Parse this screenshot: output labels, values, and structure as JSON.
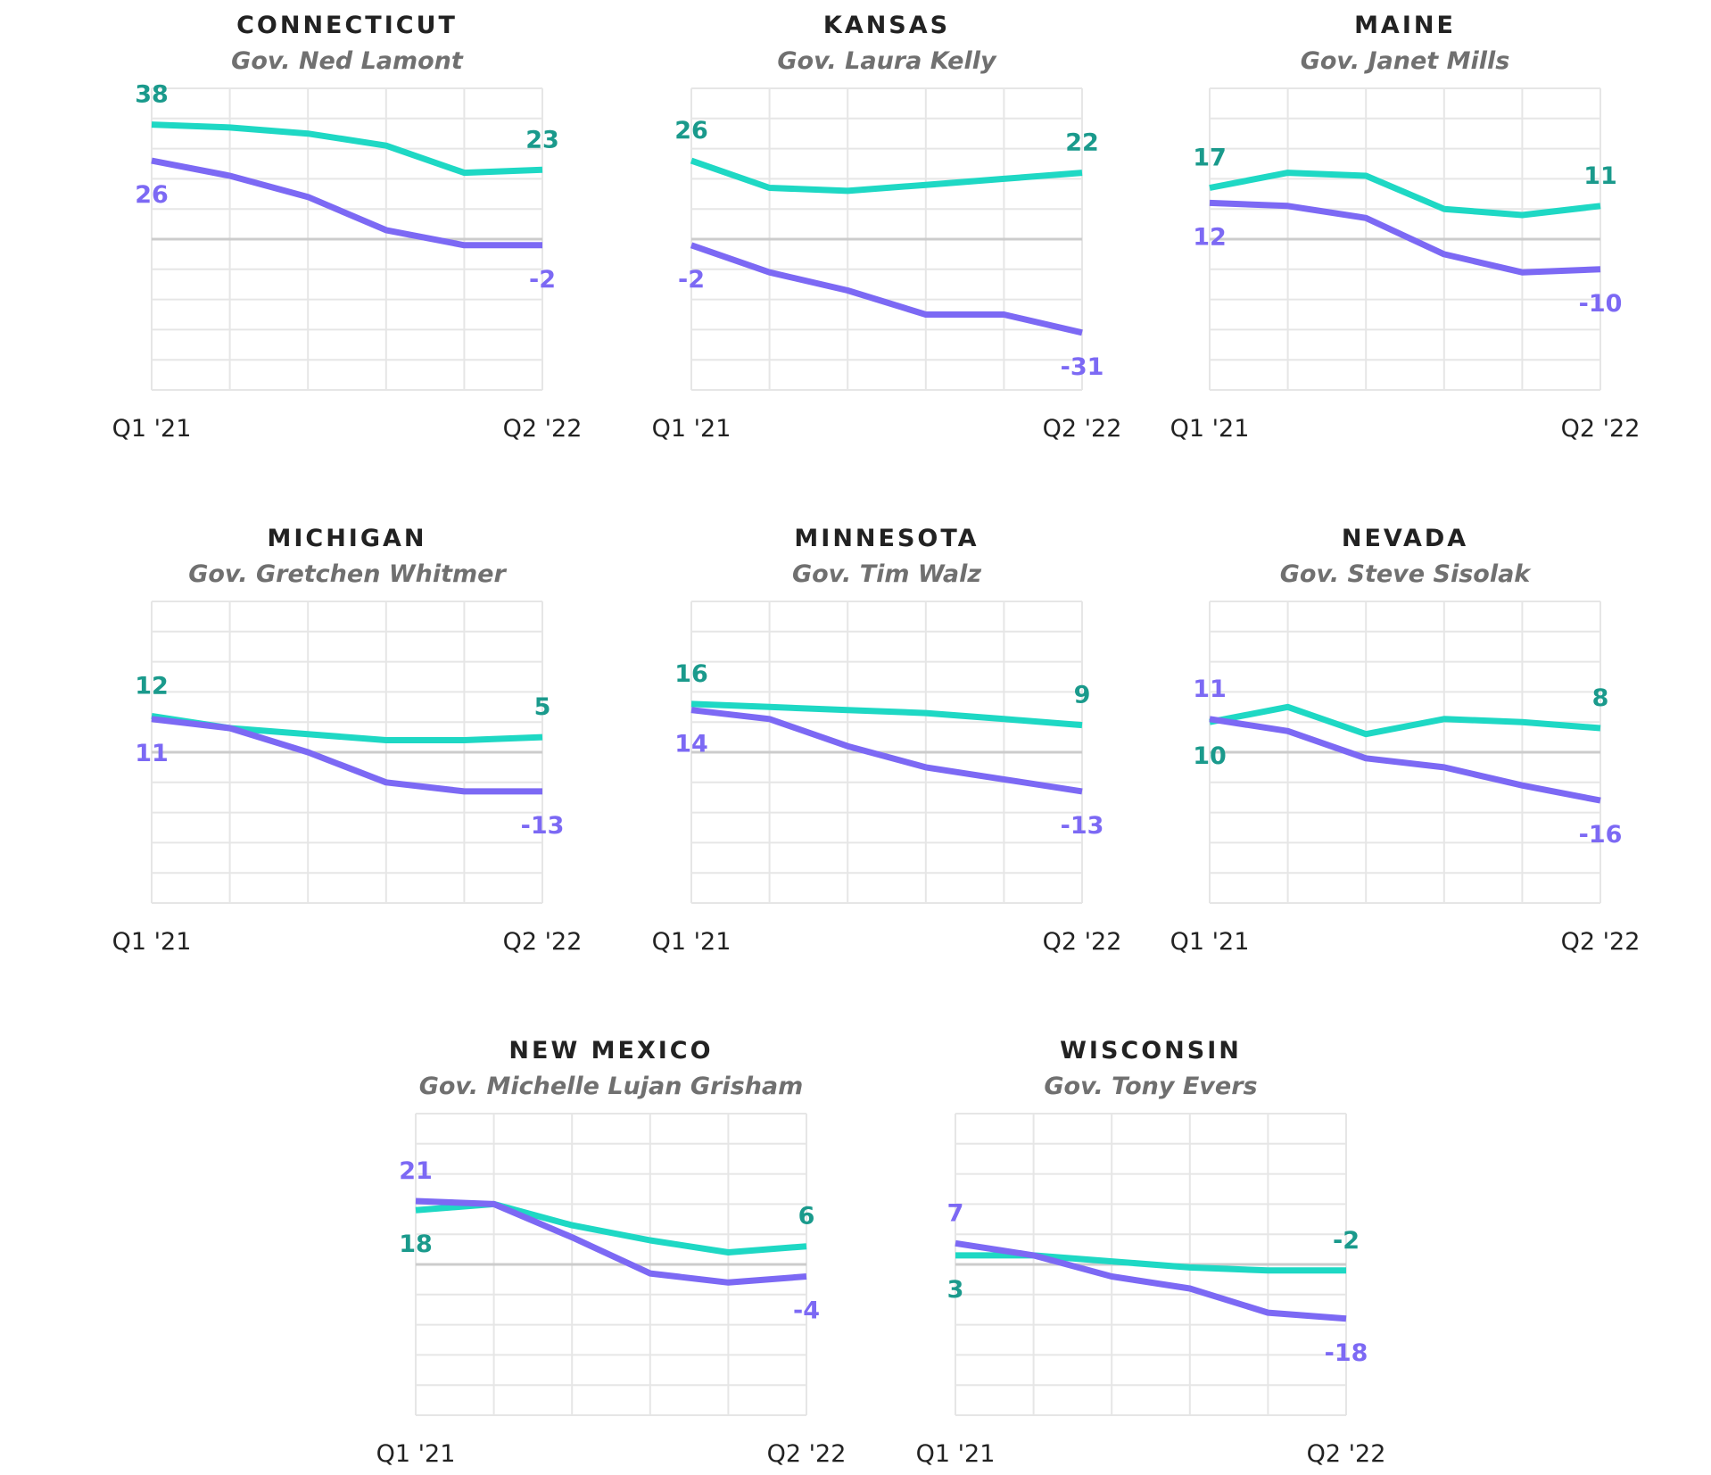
{
  "colors": {
    "series_a": "#1ed8c4",
    "series_a_label": "#1a9a8c",
    "series_b": "#7c69f4",
    "grid": "#e6e6e6",
    "zero": "#cccccc"
  },
  "chart_data": [
    {
      "type": "line",
      "title": "CONNECTICUT",
      "subtitle": "Gov. Ned Lamont",
      "x_tick_labels": [
        "Q1 '21",
        "Q2 '22"
      ],
      "x": [
        1,
        2,
        3,
        4,
        5,
        6
      ],
      "ylim": [
        -50,
        50
      ],
      "grid": true,
      "series": [
        {
          "values": [
            38,
            37,
            35,
            31,
            22,
            23
          ],
          "labels": [
            "38",
            "23"
          ]
        },
        {
          "values": [
            26,
            21,
            14,
            3,
            -2,
            -2
          ],
          "labels": [
            "26",
            "-2"
          ]
        }
      ]
    },
    {
      "type": "line",
      "title": "KANSAS",
      "subtitle": "Gov. Laura Kelly",
      "x_tick_labels": [
        "Q1 '21",
        "Q2 '22"
      ],
      "x": [
        1,
        2,
        3,
        4,
        5,
        6
      ],
      "ylim": [
        -50,
        50
      ],
      "grid": true,
      "series": [
        {
          "values": [
            26,
            17,
            16,
            18,
            20,
            22
          ],
          "labels": [
            "26",
            "22"
          ]
        },
        {
          "values": [
            -2,
            -11,
            -17,
            -25,
            -25,
            -31
          ],
          "labels": [
            "-2",
            "-31"
          ]
        }
      ]
    },
    {
      "type": "line",
      "title": "MAINE",
      "subtitle": "Gov. Janet Mills",
      "x_tick_labels": [
        "Q1 '21",
        "Q2 '22"
      ],
      "x": [
        1,
        2,
        3,
        4,
        5,
        6
      ],
      "ylim": [
        -50,
        50
      ],
      "grid": true,
      "series": [
        {
          "values": [
            17,
            22,
            21,
            10,
            8,
            11
          ],
          "labels": [
            "17",
            "11"
          ]
        },
        {
          "values": [
            12,
            11,
            7,
            -5,
            -11,
            -10
          ],
          "labels": [
            "12",
            "-10"
          ]
        }
      ]
    },
    {
      "type": "line",
      "title": "MICHIGAN",
      "subtitle": "Gov. Gretchen Whitmer",
      "x_tick_labels": [
        "Q1 '21",
        "Q2 '22"
      ],
      "x": [
        1,
        2,
        3,
        4,
        5,
        6
      ],
      "ylim": [
        -50,
        50
      ],
      "grid": true,
      "series": [
        {
          "values": [
            12,
            8,
            6,
            4,
            4,
            5
          ],
          "labels": [
            "12",
            "5"
          ]
        },
        {
          "values": [
            11,
            8,
            0,
            -10,
            -13,
            -13
          ],
          "labels": [
            "11",
            "-13"
          ]
        }
      ]
    },
    {
      "type": "line",
      "title": "MINNESOTA",
      "subtitle": "Gov. Tim Walz",
      "x_tick_labels": [
        "Q1 '21",
        "Q2 '22"
      ],
      "x": [
        1,
        2,
        3,
        4,
        5,
        6
      ],
      "ylim": [
        -50,
        50
      ],
      "grid": true,
      "series": [
        {
          "values": [
            16,
            15,
            14,
            13,
            11,
            9
          ],
          "labels": [
            "16",
            "9"
          ]
        },
        {
          "values": [
            14,
            11,
            2,
            -5,
            -9,
            -13
          ],
          "labels": [
            "14",
            "-13"
          ]
        }
      ]
    },
    {
      "type": "line",
      "title": "NEVADA",
      "subtitle": "Gov. Steve Sisolak",
      "x_tick_labels": [
        "Q1 '21",
        "Q2 '22"
      ],
      "x": [
        1,
        2,
        3,
        4,
        5,
        6
      ],
      "ylim": [
        -50,
        50
      ],
      "grid": true,
      "series": [
        {
          "values": [
            10,
            15,
            6,
            11,
            10,
            8
          ],
          "labels": [
            "10",
            "8"
          ]
        },
        {
          "values": [
            11,
            7,
            -2,
            -5,
            -11,
            -16
          ],
          "labels": [
            "11",
            "-16"
          ]
        }
      ]
    },
    {
      "type": "line",
      "title": "NEW MEXICO",
      "subtitle": "Gov. Michelle Lujan Grisham",
      "x_tick_labels": [
        "Q1 '21",
        "Q2 '22"
      ],
      "x": [
        1,
        2,
        3,
        4,
        5,
        6
      ],
      "ylim": [
        -50,
        50
      ],
      "grid": true,
      "series": [
        {
          "values": [
            18,
            20,
            13,
            8,
            4,
            6
          ],
          "labels": [
            "18",
            "6"
          ]
        },
        {
          "values": [
            21,
            20,
            9,
            -3,
            -6,
            -4
          ],
          "labels": [
            "21",
            "-4"
          ]
        }
      ]
    },
    {
      "type": "line",
      "title": "WISCONSIN",
      "subtitle": "Gov. Tony Evers",
      "x_tick_labels": [
        "Q1 '21",
        "Q2 '22"
      ],
      "x": [
        1,
        2,
        3,
        4,
        5,
        6
      ],
      "ylim": [
        -50,
        50
      ],
      "grid": true,
      "series": [
        {
          "values": [
            3,
            3,
            1,
            -1,
            -2,
            -2
          ],
          "labels": [
            "3",
            "-2"
          ]
        },
        {
          "values": [
            7,
            3,
            -4,
            -8,
            -16,
            -18
          ],
          "labels": [
            "7",
            "-18"
          ]
        }
      ]
    }
  ]
}
